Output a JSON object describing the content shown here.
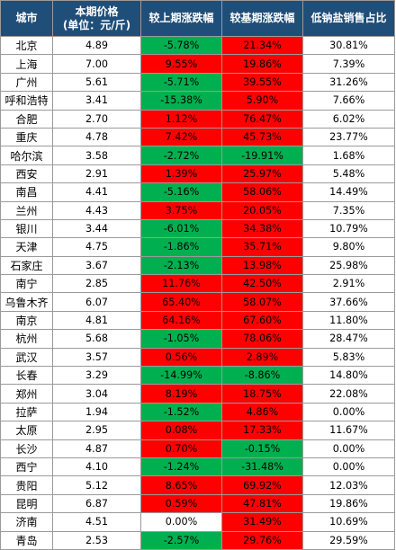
{
  "colors": {
    "header_bg": "#1f4e79",
    "increase": "#ff0000",
    "decrease": "#00b050"
  },
  "headers": {
    "city": "城市",
    "price_line1": "本期价格",
    "price_line2": "(单位：元/斤)",
    "mom": "较上期涨跌幅",
    "yoy": "较基期涨跌幅",
    "lowsodium": "低钠盐销售占比"
  },
  "rows": [
    {
      "city": "北京",
      "price": "4.89",
      "mom": "-5.78%",
      "yoy": "21.34%",
      "share": "30.81%"
    },
    {
      "city": "上海",
      "price": "7.00",
      "mom": "9.55%",
      "yoy": "19.86%",
      "share": "7.39%"
    },
    {
      "city": "广州",
      "price": "5.61",
      "mom": "-5.71%",
      "yoy": "39.55%",
      "share": "31.26%"
    },
    {
      "city": "呼和浩特",
      "price": "3.41",
      "mom": "-15.38%",
      "yoy": "5.90%",
      "share": "7.66%"
    },
    {
      "city": "合肥",
      "price": "2.70",
      "mom": "1.12%",
      "yoy": "76.47%",
      "share": "6.02%"
    },
    {
      "city": "重庆",
      "price": "4.78",
      "mom": "7.42%",
      "yoy": "45.73%",
      "share": "23.77%"
    },
    {
      "city": "哈尔滨",
      "price": "3.58",
      "mom": "-2.72%",
      "yoy": "-19.91%",
      "share": "1.68%"
    },
    {
      "city": "西安",
      "price": "2.91",
      "mom": "1.39%",
      "yoy": "25.97%",
      "share": "5.48%"
    },
    {
      "city": "南昌",
      "price": "4.41",
      "mom": "-5.16%",
      "yoy": "58.06%",
      "share": "14.49%"
    },
    {
      "city": "兰州",
      "price": "4.43",
      "mom": "3.75%",
      "yoy": "20.05%",
      "share": "7.35%"
    },
    {
      "city": "银川",
      "price": "3.44",
      "mom": "-6.01%",
      "yoy": "34.38%",
      "share": "10.79%"
    },
    {
      "city": "天津",
      "price": "4.75",
      "mom": "-1.86%",
      "yoy": "35.71%",
      "share": "9.80%"
    },
    {
      "city": "石家庄",
      "price": "3.67",
      "mom": "-2.13%",
      "yoy": "13.98%",
      "share": "25.98%"
    },
    {
      "city": "南宁",
      "price": "2.85",
      "mom": "11.76%",
      "yoy": "42.50%",
      "share": "2.91%"
    },
    {
      "city": "乌鲁木齐",
      "price": "6.07",
      "mom": "65.40%",
      "yoy": "58.07%",
      "share": "37.66%"
    },
    {
      "city": "南京",
      "price": "4.81",
      "mom": "64.16%",
      "yoy": "67.60%",
      "share": "11.80%"
    },
    {
      "city": "杭州",
      "price": "5.68",
      "mom": "-1.05%",
      "yoy": "78.06%",
      "share": "28.47%"
    },
    {
      "city": "武汉",
      "price": "3.57",
      "mom": "0.56%",
      "yoy": "2.89%",
      "share": "5.83%"
    },
    {
      "city": "长春",
      "price": "3.29",
      "mom": "-14.99%",
      "yoy": "-8.86%",
      "share": "14.80%"
    },
    {
      "city": "郑州",
      "price": "3.04",
      "mom": "8.19%",
      "yoy": "18.75%",
      "share": "22.08%"
    },
    {
      "city": "拉萨",
      "price": "1.94",
      "mom": "-1.52%",
      "yoy": "4.86%",
      "share": "0.00%"
    },
    {
      "city": "太原",
      "price": "2.95",
      "mom": "0.08%",
      "yoy": "17.33%",
      "share": "11.67%"
    },
    {
      "city": "长沙",
      "price": "4.87",
      "mom": "0.70%",
      "yoy": "-0.15%",
      "share": "0.00%"
    },
    {
      "city": "西宁",
      "price": "4.10",
      "mom": "-1.24%",
      "yoy": "-31.48%",
      "share": "0.00%"
    },
    {
      "city": "贵阳",
      "price": "5.12",
      "mom": "8.65%",
      "yoy": "69.92%",
      "share": "12.03%"
    },
    {
      "city": "昆明",
      "price": "6.87",
      "mom": "0.59%",
      "yoy": "47.81%",
      "share": "19.86%"
    },
    {
      "city": "济南",
      "price": "4.51",
      "mom": "0.00%",
      "yoy": "31.49%",
      "share": "10.69%"
    },
    {
      "city": "青岛",
      "price": "2.53",
      "mom": "-2.57%",
      "yoy": "29.76%",
      "share": "29.59%"
    }
  ]
}
